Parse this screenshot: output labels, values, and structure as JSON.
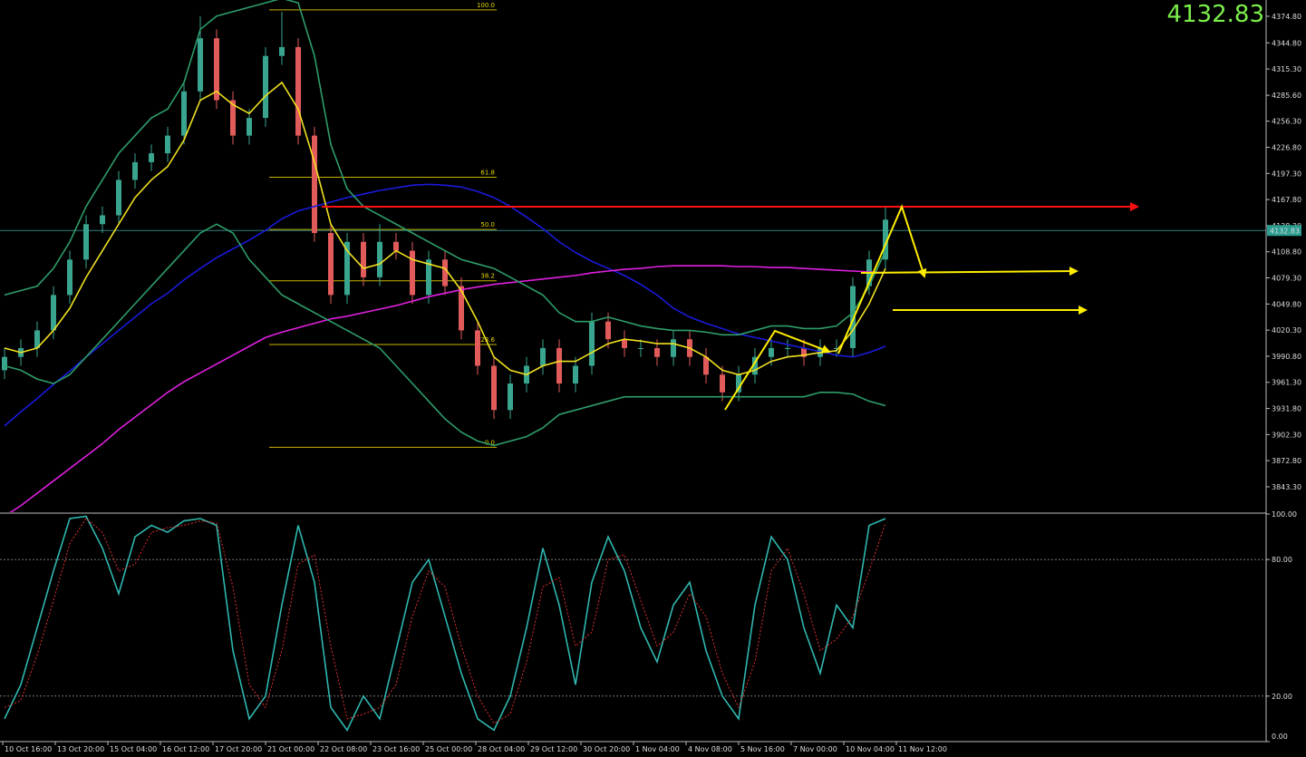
{
  "chart_data": [
    {
      "type": "candlestick",
      "current_price": 4132.83,
      "ylim": [
        3814.6,
        4393.2
      ],
      "yticks": [
        {
          "value": 4374.8,
          "label": "4374.80"
        },
        {
          "value": 4344.8,
          "label": "4344.80"
        },
        {
          "value": 4315.3,
          "label": "4315.30"
        },
        {
          "value": 4285.6,
          "label": "4285.60"
        },
        {
          "value": 4256.3,
          "label": "4256.30"
        },
        {
          "value": 4226.8,
          "label": "4226.80"
        },
        {
          "value": 4197.3,
          "label": "4197.30"
        },
        {
          "value": 4167.8,
          "label": "4167.80"
        },
        {
          "value": 4138.3,
          "label": "4138.30"
        },
        {
          "value": 4108.8,
          "label": "4108.80"
        },
        {
          "value": 4079.3,
          "label": "4079.30"
        },
        {
          "value": 4049.8,
          "label": "4049.80"
        },
        {
          "value": 4020.3,
          "label": "4020.30"
        },
        {
          "value": 3990.8,
          "label": "3990.80"
        },
        {
          "value": 3961.3,
          "label": "3961.30"
        },
        {
          "value": 3931.8,
          "label": "3931.80"
        },
        {
          "value": 3902.3,
          "label": "3902.30"
        },
        {
          "value": 3872.8,
          "label": "3872.80"
        },
        {
          "value": 3843.3,
          "label": "3843.30"
        }
      ],
      "time_labels": [
        "10 Oct 16:00",
        "13 Oct 20:00",
        "15 Oct 04:00",
        "16 Oct 12:00",
        "17 Oct 20:00",
        "21 Oct 00:00",
        "22 Oct 08:00",
        "23 Oct 16:00",
        "25 Oct 00:00",
        "28 Oct 04:00",
        "29 Oct 12:00",
        "30 Oct 20:00",
        "1 Nov 04:00",
        "4 Nov 08:00",
        "5 Nov 16:00",
        "7 Nov 00:00",
        "10 Nov 04:00",
        "11 Nov 12:00"
      ],
      "fib_levels": [
        {
          "value": 4382,
          "label": "100.0"
        },
        {
          "value": 4193,
          "label": "61.8"
        },
        {
          "value": 4134,
          "label": "50.0"
        },
        {
          "value": 4076,
          "label": "38.2"
        },
        {
          "value": 4004,
          "label": "23.6"
        },
        {
          "value": 3888,
          "label": "0.0"
        }
      ],
      "up_color": "#3aa58f",
      "down_color": "#e25b5b",
      "open": [
        3975,
        3990,
        4000,
        4020,
        4060,
        4100,
        4140,
        4150,
        4190,
        4210,
        4220,
        4240,
        4290,
        4350,
        4280,
        4240,
        4260,
        4330,
        4340,
        4240,
        4130,
        4060,
        4120,
        4080,
        4120,
        4110,
        4060,
        4100,
        4070,
        4020,
        3980,
        3930,
        3960,
        3980,
        4000,
        3960,
        3980,
        4030,
        4010,
        4000,
        4000,
        3990,
        4010,
        3990,
        3970,
        3950,
        3970,
        3990,
        4000,
        4000,
        3990,
        4000,
        4000,
        4070,
        4100
      ],
      "high": [
        4000,
        4010,
        4030,
        4070,
        4110,
        4150,
        4160,
        4200,
        4220,
        4230,
        4250,
        4300,
        4375,
        4360,
        4290,
        4270,
        4340,
        4380,
        4350,
        4250,
        4140,
        4130,
        4130,
        4140,
        4130,
        4120,
        4110,
        4110,
        4080,
        4030,
        3990,
        3970,
        3990,
        4010,
        4010,
        3990,
        4040,
        4040,
        4020,
        4010,
        4010,
        4020,
        4020,
        4000,
        3980,
        3980,
        4000,
        4010,
        4010,
        4010,
        4010,
        4010,
        4080,
        4110,
        4160
      ],
      "low": [
        3965,
        3980,
        3990,
        4010,
        4050,
        4090,
        4130,
        4140,
        4180,
        4200,
        4210,
        4230,
        4280,
        4270,
        4230,
        4230,
        4250,
        4320,
        4230,
        4120,
        4050,
        4050,
        4070,
        4070,
        4100,
        4050,
        4050,
        4060,
        4010,
        3970,
        3920,
        3920,
        3950,
        3970,
        3950,
        3950,
        3970,
        4000,
        3990,
        3990,
        3980,
        3980,
        3980,
        3960,
        3940,
        3940,
        3960,
        3980,
        3990,
        3980,
        3980,
        3990,
        3990,
        4060,
        4090
      ],
      "close": [
        3990,
        4000,
        4020,
        4060,
        4100,
        4140,
        4150,
        4190,
        4210,
        4220,
        4240,
        4290,
        4350,
        4280,
        4240,
        4260,
        4330,
        4340,
        4240,
        4130,
        4060,
        4120,
        4080,
        4120,
        4110,
        4060,
        4100,
        4070,
        4020,
        3980,
        3930,
        3960,
        3980,
        4000,
        3960,
        3980,
        4030,
        4010,
        4000,
        4000,
        3990,
        4010,
        3990,
        3970,
        3950,
        3970,
        3990,
        4000,
        4000,
        3990,
        4000,
        4000,
        4070,
        4100,
        4145
      ],
      "series": [
        {
          "color": "#1a1adc",
          "values": [
            3912,
            3928,
            3943,
            3959,
            3974,
            3990,
            4005,
            4020,
            4035,
            4050,
            4062,
            4077,
            4090,
            4102,
            4112,
            4122,
            4133,
            4146,
            4155,
            4160,
            4165,
            4170,
            4174,
            4178,
            4181,
            4184,
            4185,
            4184,
            4182,
            4177,
            4170,
            4160,
            4148,
            4135,
            4120,
            4108,
            4098,
            4090,
            4082,
            4072,
            4060,
            4045,
            4035,
            4028,
            4022,
            4016,
            4012,
            4008,
            4004,
            4000,
            3996,
            3992,
            3990,
            3995,
            4002
          ]
        },
        {
          "color": "#e020e0",
          "values": [
            3810,
            3822,
            3836,
            3850,
            3864,
            3878,
            3892,
            3908,
            3922,
            3936,
            3950,
            3962,
            3972,
            3982,
            3992,
            4002,
            4012,
            4018,
            4023,
            4028,
            4033,
            4036,
            4040,
            4044,
            4048,
            4053,
            4058,
            4062,
            4066,
            4069,
            4072,
            4074,
            4076,
            4078,
            4080,
            4082,
            4085,
            4087,
            4089,
            4090,
            4092,
            4093,
            4093,
            4093,
            4093,
            4092,
            4092,
            4091,
            4091,
            4090,
            4089,
            4088,
            4087,
            4086,
            4085
          ]
        },
        {
          "color": "#f0e020",
          "values": [
            4000,
            3995,
            4000,
            4020,
            4045,
            4080,
            4110,
            4140,
            4170,
            4190,
            4205,
            4235,
            4280,
            4290,
            4275,
            4265,
            4285,
            4300,
            4270,
            4210,
            4140,
            4110,
            4090,
            4095,
            4110,
            4100,
            4095,
            4090,
            4065,
            4030,
            3990,
            3975,
            3970,
            3980,
            3985,
            3985,
            3995,
            4005,
            4010,
            4008,
            4005,
            4005,
            4000,
            3990,
            3975,
            3970,
            3975,
            3985,
            3990,
            3992,
            3995,
            3997,
            4020,
            4050,
            4090
          ]
        },
        {
          "color": "#2e9e6a",
          "values": [
            4060,
            4065,
            4070,
            4090,
            4120,
            4160,
            4190,
            4220,
            4240,
            4260,
            4270,
            4300,
            4360,
            4375,
            4380,
            4385,
            4390,
            4395,
            4390,
            4330,
            4230,
            4180,
            4160,
            4150,
            4140,
            4130,
            4120,
            4110,
            4100,
            4095,
            4090,
            4080,
            4070,
            4060,
            4040,
            4030,
            4030,
            4035,
            4030,
            4025,
            4022,
            4020,
            4020,
            4018,
            4015,
            4015,
            4020,
            4025,
            4025,
            4022,
            4022,
            4025,
            4040,
            4070,
            4110
          ]
        },
        {
          "color": "#2e9e6a",
          "values": [
            3980,
            3975,
            3965,
            3960,
            3970,
            3990,
            4010,
            4030,
            4050,
            4070,
            4090,
            4110,
            4130,
            4140,
            4130,
            4100,
            4080,
            4060,
            4050,
            4040,
            4030,
            4020,
            4010,
            4000,
            3980,
            3960,
            3940,
            3920,
            3905,
            3895,
            3890,
            3895,
            3900,
            3910,
            3925,
            3930,
            3935,
            3940,
            3945,
            3945,
            3945,
            3945,
            3945,
            3945,
            3945,
            3945,
            3945,
            3945,
            3945,
            3945,
            3950,
            3950,
            3948,
            3940,
            3935
          ]
        }
      ]
    },
    {
      "type": "line",
      "ylim": [
        0,
        100
      ],
      "yticks": [
        {
          "value": 100,
          "label": "100.00"
        },
        {
          "value": 80,
          "label": "80.00"
        },
        {
          "value": 20,
          "label": "20.00"
        },
        {
          "value": 0,
          "label": "0.00"
        }
      ],
      "series": [
        {
          "color": "#2fb8b0",
          "values": [
            10,
            25,
            50,
            75,
            98,
            99,
            85,
            65,
            90,
            95,
            92,
            97,
            98,
            95,
            40,
            10,
            20,
            60,
            95,
            70,
            15,
            5,
            20,
            10,
            40,
            70,
            80,
            55,
            30,
            10,
            5,
            20,
            50,
            85,
            60,
            25,
            70,
            90,
            75,
            50,
            35,
            60,
            70,
            40,
            20,
            10,
            60,
            90,
            80,
            50,
            30,
            60,
            50,
            95,
            98
          ]
        },
        {
          "color": "#e03030",
          "values": [
            15,
            18,
            38,
            62,
            87,
            98,
            92,
            75,
            78,
            92,
            94,
            95,
            97,
            96,
            68,
            25,
            15,
            40,
            78,
            82,
            42,
            10,
            12,
            15,
            25,
            55,
            75,
            68,
            42,
            20,
            8,
            12,
            35,
            68,
            72,
            42,
            48,
            80,
            82,
            62,
            42,
            48,
            65,
            55,
            30,
            15,
            35,
            75,
            85,
            65,
            40,
            45,
            55,
            75,
            96
          ]
        }
      ]
    }
  ]
}
